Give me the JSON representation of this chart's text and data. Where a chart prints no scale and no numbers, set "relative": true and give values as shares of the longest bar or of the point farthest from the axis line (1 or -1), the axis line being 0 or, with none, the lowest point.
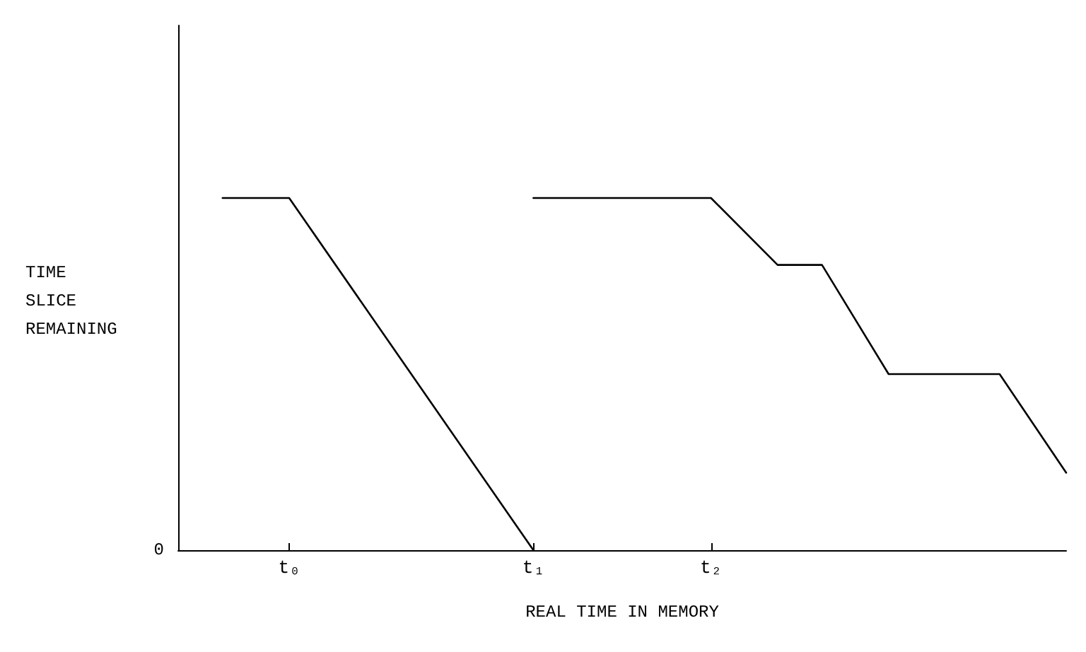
{
  "chart_data": {
    "type": "line",
    "relative": true,
    "xlabel": "REAL TIME IN MEMORY",
    "ylabel": "TIME\nSLICE\nREMAINING",
    "categories": [
      null,
      null,
      null,
      null,
      null,
      "t₀",
      null,
      null,
      null,
      null,
      null,
      null,
      null,
      null,
      null,
      null,
      "t₁",
      null,
      null,
      null,
      null,
      null,
      null,
      null,
      "t₂",
      null,
      null,
      null,
      null,
      null,
      null,
      null,
      null,
      null,
      null,
      null,
      null,
      null,
      null,
      null,
      null
    ],
    "series": [
      {
        "color": "#000000",
        "values": [
          null,
          null,
          1,
          null,
          null,
          1,
          null,
          null,
          null,
          null,
          null,
          null,
          null,
          null,
          null,
          null,
          0,
          null,
          null,
          null,
          null,
          null,
          null,
          null,
          null,
          null,
          null,
          null,
          null,
          null,
          null,
          null,
          null,
          null,
          null,
          null,
          null,
          null,
          null,
          null,
          null
        ]
      },
      {
        "color": "#000000",
        "values": [
          null,
          null,
          null,
          null,
          null,
          null,
          null,
          null,
          null,
          null,
          null,
          null,
          null,
          null,
          null,
          null,
          1,
          null,
          null,
          null,
          null,
          null,
          null,
          null,
          1,
          null,
          null,
          0.81,
          null,
          0.81,
          null,
          null,
          0.5,
          null,
          null,
          null,
          null,
          0.5,
          null,
          null,
          0.22
        ]
      }
    ],
    "annotations": [
      "0"
    ],
    "grid": false,
    "marker": "none",
    "line_style": "solid"
  }
}
